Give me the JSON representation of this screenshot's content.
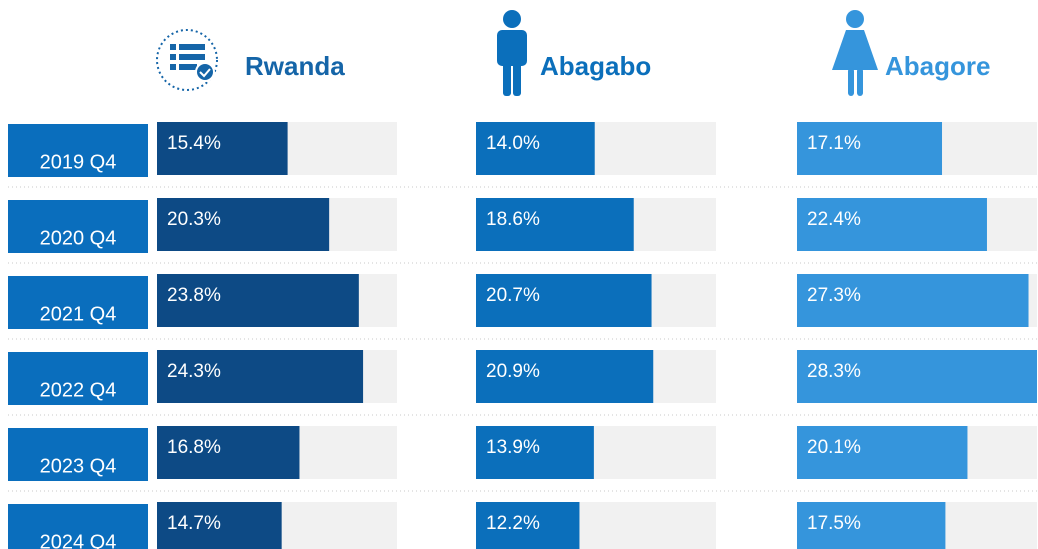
{
  "chart_data": {
    "type": "bar",
    "orientation": "horizontal",
    "categories": [
      "2019 Q4",
      "2020 Q4",
      "2021 Q4",
      "2022 Q4",
      "2023 Q4",
      "2024 Q4"
    ],
    "series": [
      {
        "name": "Rwanda",
        "color": "#0d4a85",
        "values": [
          15.4,
          20.3,
          23.8,
          24.3,
          16.8,
          14.7
        ],
        "value_labels": [
          "15.4%",
          "20.3%",
          "23.8%",
          "24.3%",
          "16.8%",
          "14.7%"
        ]
      },
      {
        "name": "Abagabo",
        "color": "#0b6fbb",
        "values": [
          14.0,
          18.6,
          20.7,
          20.9,
          13.9,
          12.2
        ],
        "value_labels": [
          "14.0%",
          "18.6%",
          "20.7%",
          "20.9%",
          "13.9%",
          "12.2%"
        ]
      },
      {
        "name": "Abagore",
        "color": "#3595dc",
        "values": [
          17.1,
          22.4,
          27.3,
          28.3,
          20.1,
          17.5
        ],
        "value_labels": [
          "17.1%",
          "22.4%",
          "27.3%",
          "28.3%",
          "20.1%",
          "17.5%"
        ]
      }
    ]
  }
}
